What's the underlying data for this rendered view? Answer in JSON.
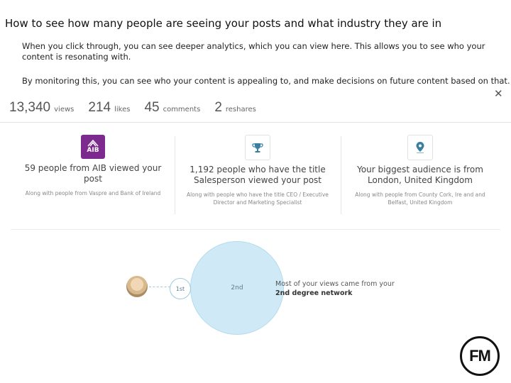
{
  "slide": {
    "title": "How to see how many people are seeing your posts and what industry they are in",
    "intro": "When you click through, you can see deeper analytics, which you can view here. This allows you to see who your content is resonating with.",
    "intro2": "By monitoring this, you can see who your content is appealing to, and make decisions on future content based on that."
  },
  "stats": [
    {
      "value": "13,340",
      "label": "views"
    },
    {
      "value": "214",
      "label": "likes"
    },
    {
      "value": "45",
      "label": "comments"
    },
    {
      "value": "2",
      "label": "reshares"
    }
  ],
  "cards": [
    {
      "icon": "aib-logo-icon",
      "icon_text": "AIB",
      "headline": "59 people from AIB viewed your post",
      "sub": "Along with people from Vaspre and Bank of Ireland"
    },
    {
      "icon": "trophy-icon",
      "headline": "1,192 people who have the title Salesperson viewed your post",
      "sub": "Along with people who have the title CEO / Executive Director and Marketing Specialist"
    },
    {
      "icon": "location-pin-icon",
      "headline": "Your biggest audience is from London, United Kingdom",
      "sub": "Along with people from County Cork, Ire and and Belfast, United Kingdom"
    }
  ],
  "network": {
    "first": "1st",
    "second": "2nd",
    "line1": "Most of your views came from your",
    "strong": "2nd",
    "line2": " degree network"
  },
  "close_symbol": "✕",
  "brand": {
    "logo_text": "FM"
  },
  "colors": {
    "aib_purple": "#7d2a8f",
    "network_circle": "#cfeaf6"
  }
}
